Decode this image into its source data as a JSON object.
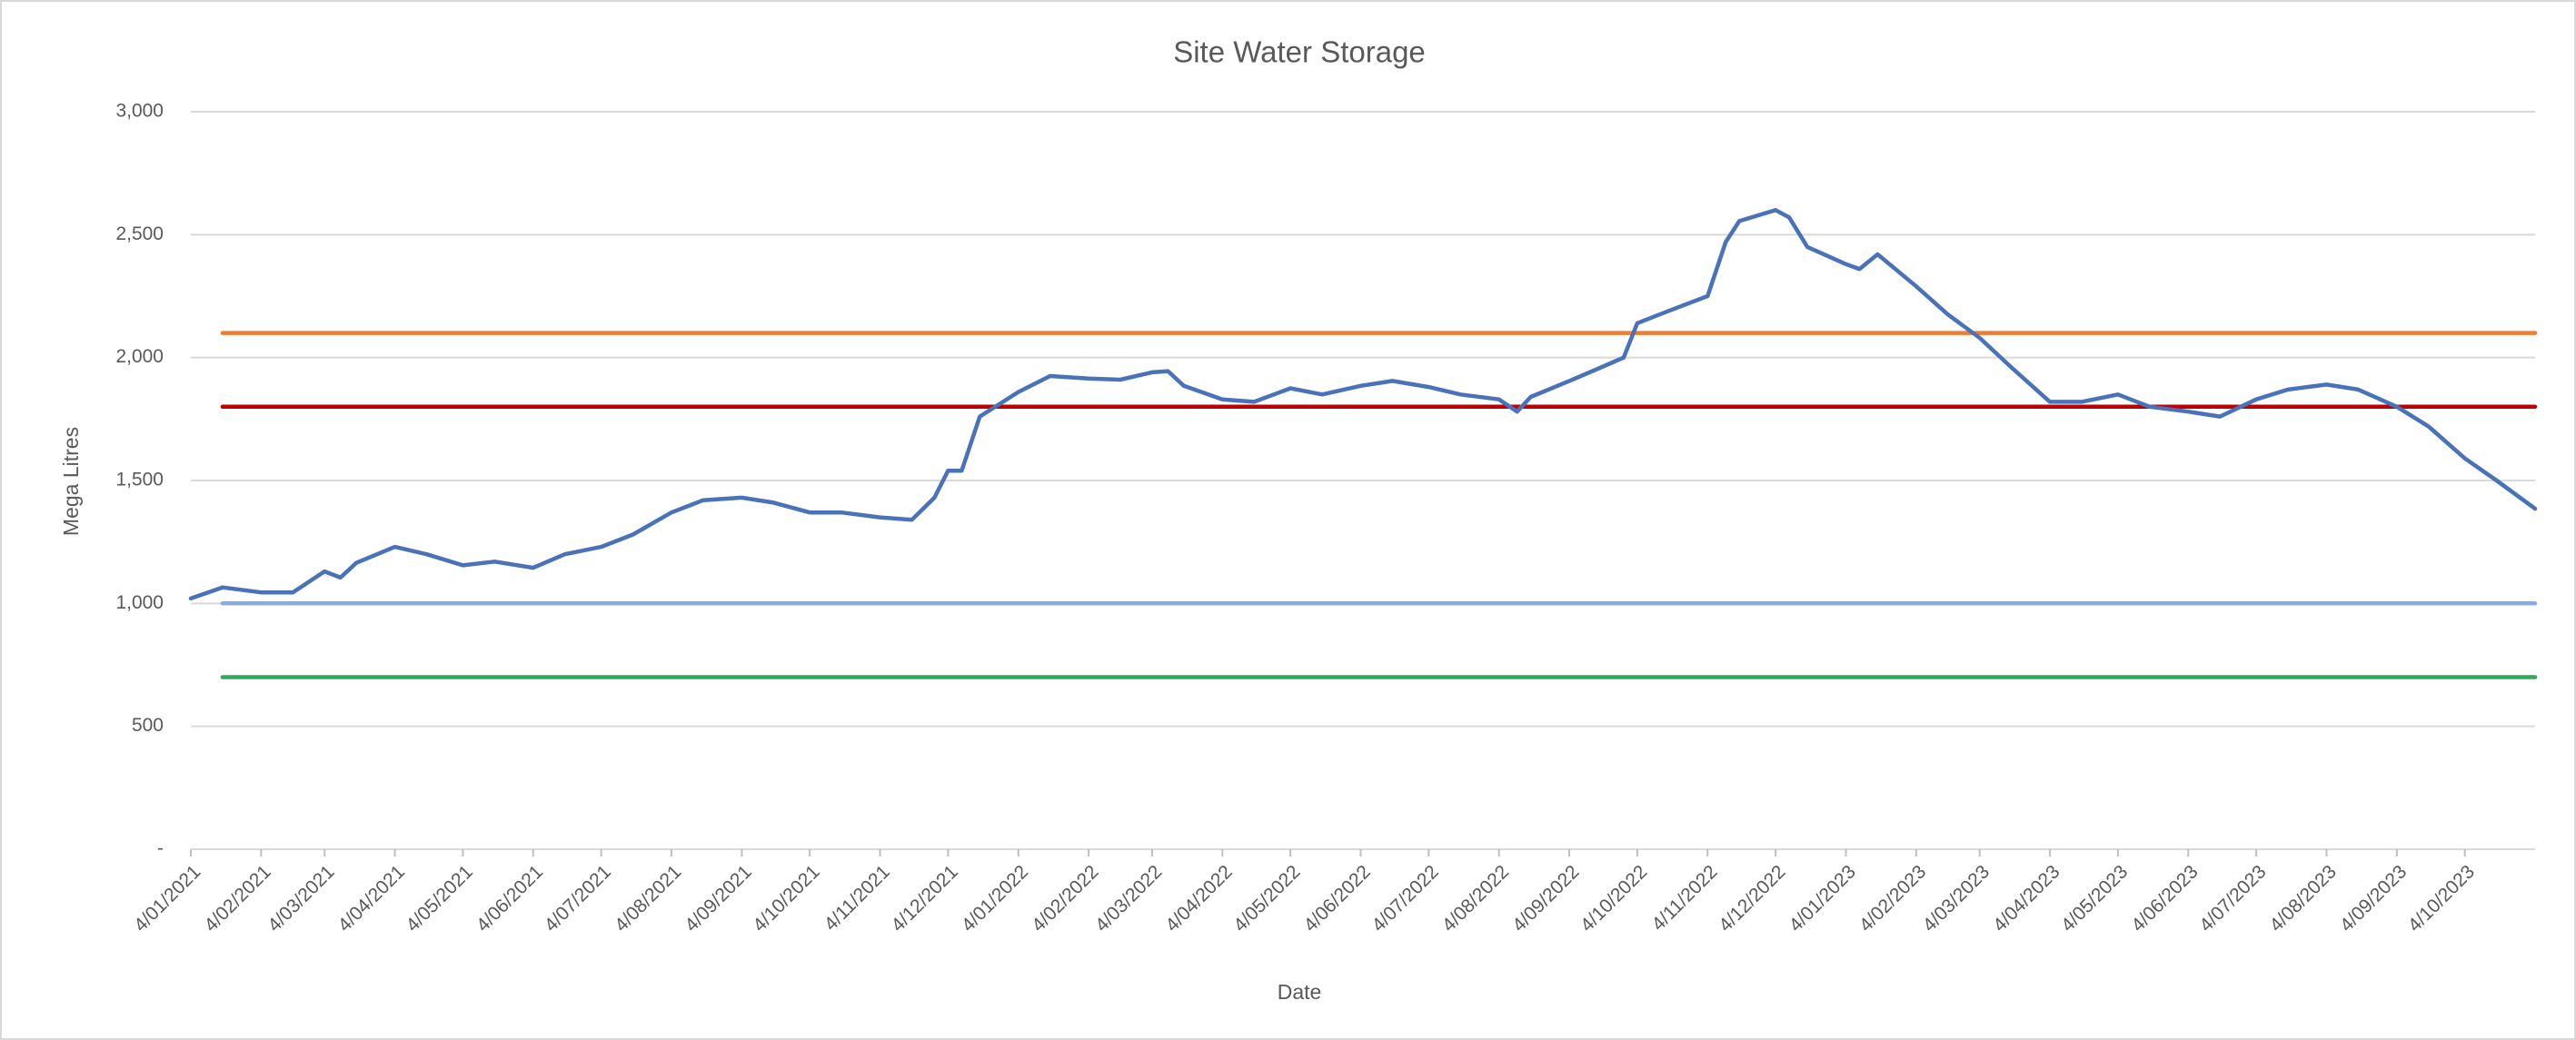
{
  "chart_data": {
    "type": "line",
    "title": "Site Water Storage",
    "x_label": "Date",
    "y_label": "Mega Litres",
    "xlim": [
      "2021-01-04",
      "2023-11-04"
    ],
    "xticks": [
      {
        "value": "2021-01-04",
        "label": "4/01/2021"
      },
      {
        "value": "2021-02-04",
        "label": "4/02/2021"
      },
      {
        "value": "2021-03-04",
        "label": "4/03/2021"
      },
      {
        "value": "2021-04-04",
        "label": "4/04/2021"
      },
      {
        "value": "2021-05-04",
        "label": "4/05/2021"
      },
      {
        "value": "2021-06-04",
        "label": "4/06/2021"
      },
      {
        "value": "2021-07-04",
        "label": "4/07/2021"
      },
      {
        "value": "2021-08-04",
        "label": "4/08/2021"
      },
      {
        "value": "2021-09-04",
        "label": "4/09/2021"
      },
      {
        "value": "2021-10-04",
        "label": "4/10/2021"
      },
      {
        "value": "2021-11-04",
        "label": "4/11/2021"
      },
      {
        "value": "2021-12-04",
        "label": "4/12/2021"
      },
      {
        "value": "2022-01-04",
        "label": "4/01/2022"
      },
      {
        "value": "2022-02-04",
        "label": "4/02/2022"
      },
      {
        "value": "2022-03-04",
        "label": "4/03/2022"
      },
      {
        "value": "2022-04-04",
        "label": "4/04/2022"
      },
      {
        "value": "2022-05-04",
        "label": "4/05/2022"
      },
      {
        "value": "2022-06-04",
        "label": "4/06/2022"
      },
      {
        "value": "2022-07-04",
        "label": "4/07/2022"
      },
      {
        "value": "2022-08-04",
        "label": "4/08/2022"
      },
      {
        "value": "2022-09-04",
        "label": "4/09/2022"
      },
      {
        "value": "2022-10-04",
        "label": "4/10/2022"
      },
      {
        "value": "2022-11-04",
        "label": "4/11/2022"
      },
      {
        "value": "2022-12-04",
        "label": "4/12/2022"
      },
      {
        "value": "2023-01-04",
        "label": "4/01/2023"
      },
      {
        "value": "2023-02-04",
        "label": "4/02/2023"
      },
      {
        "value": "2023-03-04",
        "label": "4/03/2023"
      },
      {
        "value": "2023-04-04",
        "label": "4/04/2023"
      },
      {
        "value": "2023-05-04",
        "label": "4/05/2023"
      },
      {
        "value": "2023-06-04",
        "label": "4/06/2023"
      },
      {
        "value": "2023-07-04",
        "label": "4/07/2023"
      },
      {
        "value": "2023-08-04",
        "label": "4/08/2023"
      },
      {
        "value": "2023-09-04",
        "label": "4/09/2023"
      },
      {
        "value": "2023-10-04",
        "label": "4/10/2023"
      }
    ],
    "ylim": [
      0,
      3000
    ],
    "yticks": [
      {
        "value": 0,
        "label": "-"
      },
      500,
      {
        "value": 1000,
        "label": "1,000"
      },
      {
        "value": 1500,
        "label": "1,500"
      },
      {
        "value": 2000,
        "label": "2,000"
      },
      {
        "value": 2500,
        "label": "2,500"
      },
      {
        "value": 3000,
        "label": "3,000"
      }
    ],
    "grid": true,
    "series": [
      {
        "color": "#ed7d31",
        "x": [
          "2021-01-18",
          "2023-11-04"
        ],
        "values": [
          2100,
          2100
        ]
      },
      {
        "color": "#c00000",
        "x": [
          "2021-01-18",
          "2023-11-04"
        ],
        "values": [
          1800,
          1800
        ]
      },
      {
        "color": "#8eaadb",
        "x": [
          "2021-01-18",
          "2023-11-04"
        ],
        "values": [
          1000,
          1000
        ]
      },
      {
        "color": "#2eaa5c",
        "x": [
          "2021-01-18",
          "2023-11-04"
        ],
        "values": [
          700,
          700
        ]
      },
      {
        "color": "#4a72b8",
        "x": [
          "2021-01-04",
          "2021-01-18",
          "2021-02-04",
          "2021-02-18",
          "2021-03-04",
          "2021-03-11",
          "2021-03-18",
          "2021-04-04",
          "2021-04-18",
          "2021-05-04",
          "2021-05-18",
          "2021-06-04",
          "2021-06-18",
          "2021-07-04",
          "2021-07-18",
          "2021-08-04",
          "2021-08-18",
          "2021-09-04",
          "2021-09-18",
          "2021-10-04",
          "2021-10-18",
          "2021-11-04",
          "2021-11-18",
          "2021-11-28",
          "2021-12-04",
          "2021-12-10",
          "2021-12-18",
          "2022-01-04",
          "2022-01-18",
          "2022-02-04",
          "2022-02-18",
          "2022-03-04",
          "2022-03-11",
          "2022-03-18",
          "2022-04-04",
          "2022-04-18",
          "2022-05-04",
          "2022-05-18",
          "2022-06-04",
          "2022-06-18",
          "2022-07-04",
          "2022-07-18",
          "2022-08-04",
          "2022-08-12",
          "2022-08-18",
          "2022-09-04",
          "2022-09-18",
          "2022-09-28",
          "2022-10-04",
          "2022-10-18",
          "2022-11-04",
          "2022-11-12",
          "2022-11-18",
          "2022-12-04",
          "2022-12-10",
          "2022-12-18",
          "2023-01-04",
          "2023-01-10",
          "2023-01-18",
          "2023-02-04",
          "2023-02-18",
          "2023-03-04",
          "2023-03-18",
          "2023-04-04",
          "2023-04-18",
          "2023-05-04",
          "2023-05-18",
          "2023-06-04",
          "2023-06-18",
          "2023-07-04",
          "2023-07-18",
          "2023-08-04",
          "2023-08-18",
          "2023-09-04",
          "2023-09-18",
          "2023-10-04",
          "2023-10-18",
          "2023-11-04"
        ],
        "values": [
          1020,
          1065,
          1045,
          1045,
          1130,
          1105,
          1165,
          1230,
          1200,
          1155,
          1170,
          1145,
          1200,
          1230,
          1280,
          1370,
          1420,
          1430,
          1410,
          1370,
          1370,
          1350,
          1340,
          1430,
          1540,
          1540,
          1760,
          1860,
          1925,
          1915,
          1910,
          1940,
          1945,
          1885,
          1830,
          1820,
          1875,
          1850,
          1885,
          1905,
          1880,
          1850,
          1830,
          1780,
          1840,
          1905,
          1960,
          2000,
          2140,
          2190,
          2250,
          2470,
          2555,
          2600,
          2570,
          2450,
          2380,
          2360,
          2420,
          2290,
          2175,
          2080,
          1960,
          1820,
          1820,
          1850,
          1800,
          1780,
          1760,
          1830,
          1870,
          1890,
          1870,
          1800,
          1720,
          1590,
          1500,
          1385
        ]
      }
    ]
  }
}
